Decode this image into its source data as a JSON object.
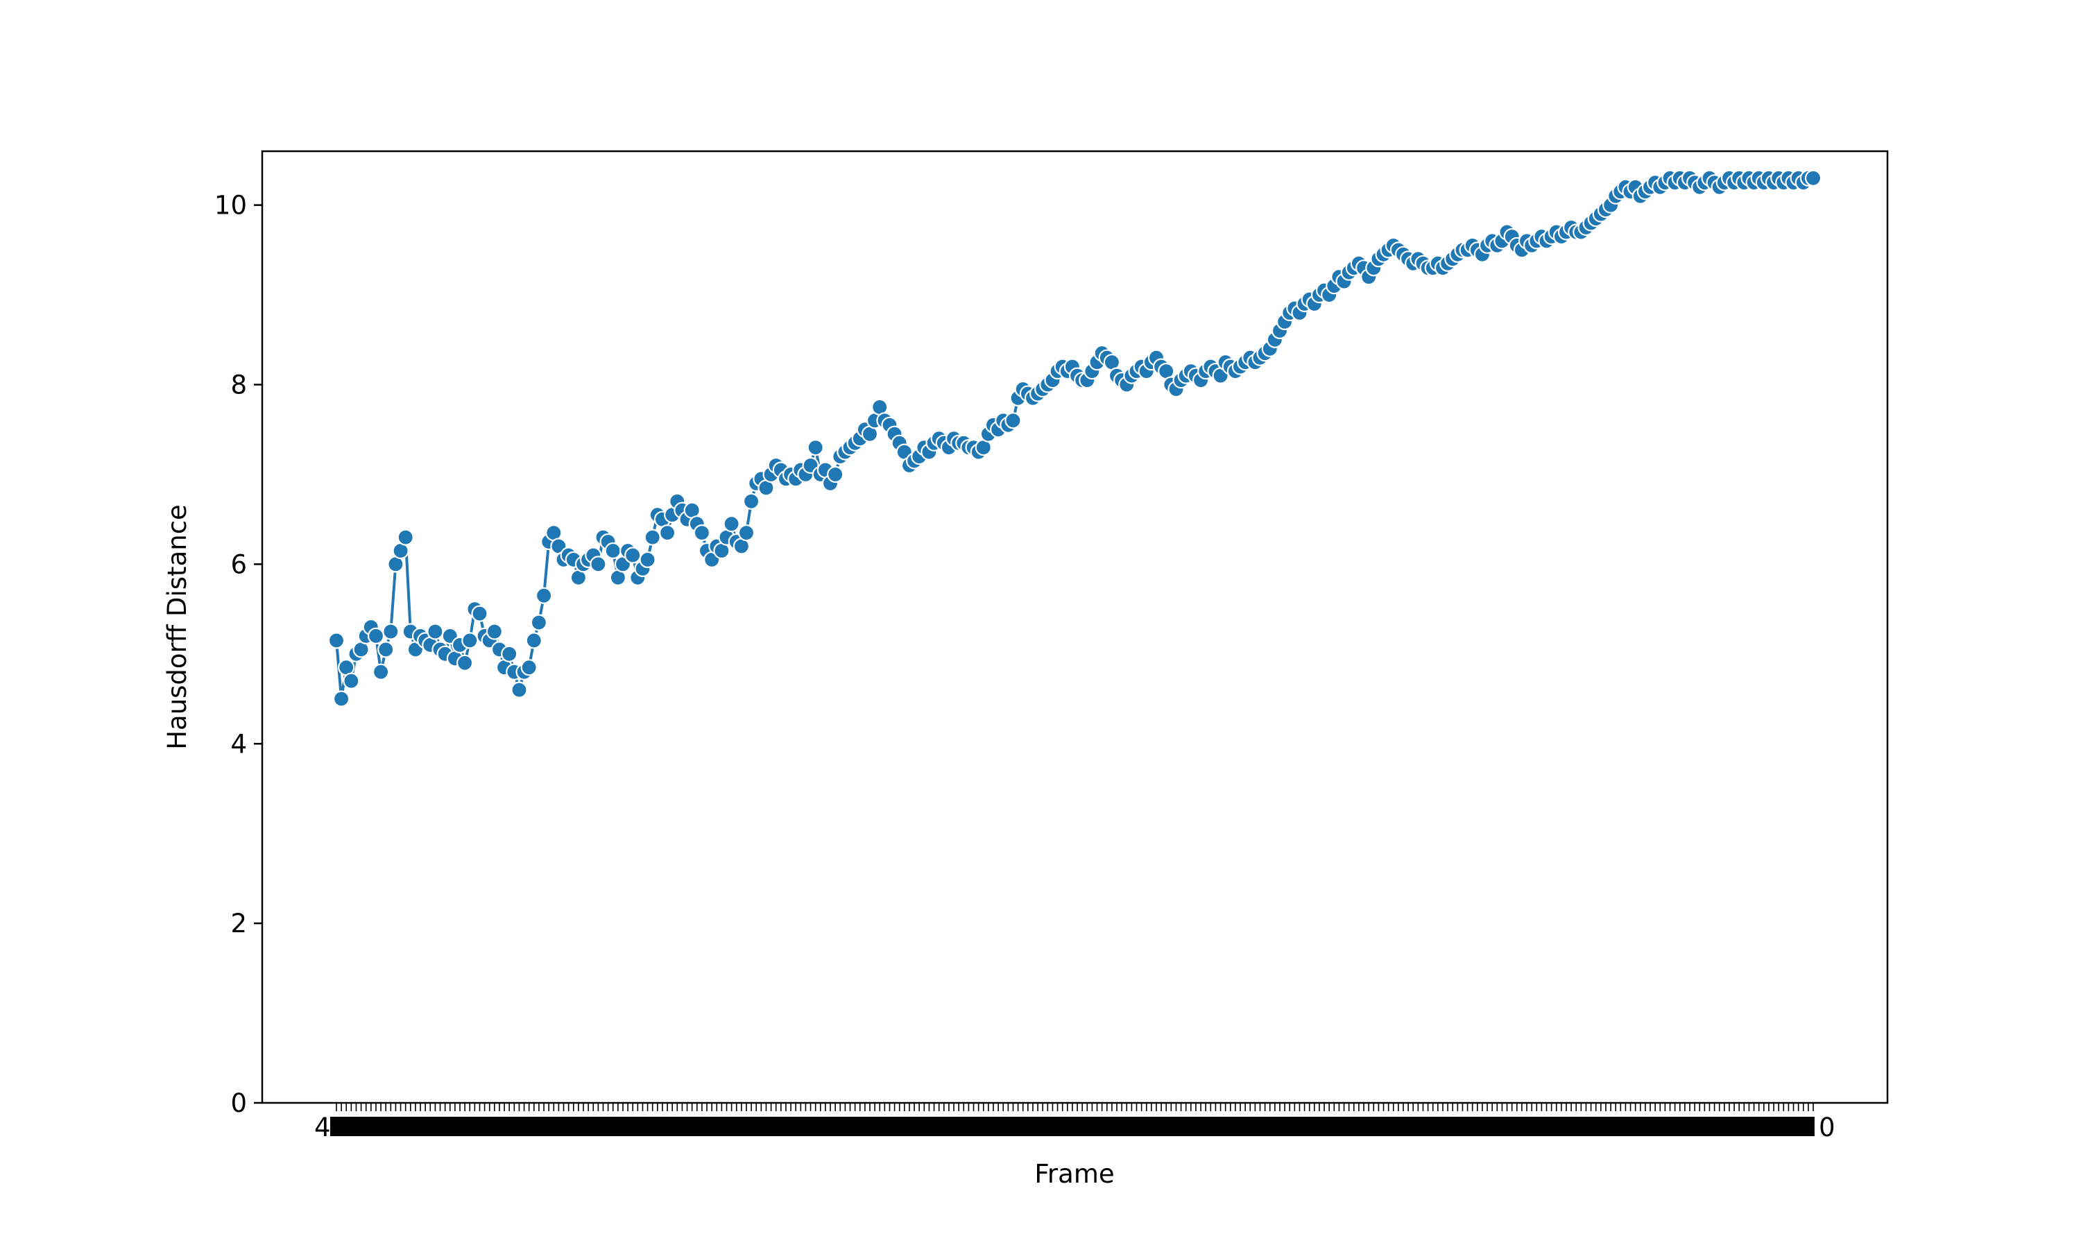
{
  "chart_data": {
    "type": "line",
    "title": "",
    "xlabel": "Frame",
    "ylabel": "Hausdorff Distance",
    "ylim": [
      0,
      10.6
    ],
    "yticks": [
      "0",
      "2",
      "4",
      "6",
      "8",
      "10"
    ],
    "grid": false,
    "legend": "none",
    "marker": "circle",
    "x_tick_labels_overlapping": true,
    "x_tick_label_fragments": [
      "4",
      "0"
    ],
    "series": [
      {
        "color": "#1f77b4",
        "values": [
          5.15,
          4.5,
          4.85,
          4.7,
          5.0,
          5.05,
          5.2,
          5.3,
          5.2,
          4.8,
          5.05,
          5.25,
          6.0,
          6.15,
          6.3,
          5.25,
          5.05,
          5.2,
          5.15,
          5.1,
          5.25,
          5.05,
          5.0,
          5.2,
          4.95,
          5.1,
          4.9,
          5.15,
          5.5,
          5.45,
          5.2,
          5.15,
          5.25,
          5.05,
          4.85,
          5.0,
          4.8,
          4.6,
          4.8,
          4.85,
          5.15,
          5.35,
          5.65,
          6.25,
          6.35,
          6.2,
          6.05,
          6.1,
          6.05,
          5.85,
          6.0,
          6.05,
          6.1,
          6.0,
          6.3,
          6.25,
          6.15,
          5.85,
          6.0,
          6.15,
          6.1,
          5.85,
          5.95,
          6.05,
          6.3,
          6.55,
          6.5,
          6.35,
          6.55,
          6.7,
          6.6,
          6.5,
          6.6,
          6.45,
          6.35,
          6.15,
          6.05,
          6.2,
          6.15,
          6.3,
          6.45,
          6.25,
          6.2,
          6.35,
          6.7,
          6.9,
          6.95,
          6.85,
          7.0,
          7.1,
          7.05,
          6.95,
          7.0,
          6.95,
          7.05,
          7.0,
          7.1,
          7.3,
          7.0,
          7.05,
          6.9,
          7.0,
          7.2,
          7.25,
          7.3,
          7.35,
          7.4,
          7.5,
          7.45,
          7.6,
          7.75,
          7.6,
          7.55,
          7.45,
          7.35,
          7.25,
          7.1,
          7.15,
          7.2,
          7.3,
          7.25,
          7.35,
          7.4,
          7.35,
          7.3,
          7.4,
          7.35,
          7.35,
          7.3,
          7.3,
          7.25,
          7.3,
          7.45,
          7.55,
          7.5,
          7.6,
          7.55,
          7.6,
          7.85,
          7.95,
          7.9,
          7.85,
          7.9,
          7.95,
          8.0,
          8.05,
          8.15,
          8.2,
          8.15,
          8.2,
          8.1,
          8.05,
          8.05,
          8.15,
          8.25,
          8.35,
          8.3,
          8.25,
          8.1,
          8.05,
          8.0,
          8.1,
          8.15,
          8.2,
          8.15,
          8.25,
          8.3,
          8.2,
          8.15,
          8.0,
          7.95,
          8.05,
          8.1,
          8.15,
          8.1,
          8.05,
          8.15,
          8.2,
          8.15,
          8.1,
          8.25,
          8.2,
          8.15,
          8.2,
          8.25,
          8.3,
          8.25,
          8.3,
          8.35,
          8.4,
          8.5,
          8.6,
          8.7,
          8.8,
          8.85,
          8.8,
          8.9,
          8.95,
          8.9,
          9.0,
          9.05,
          9.0,
          9.1,
          9.2,
          9.15,
          9.25,
          9.3,
          9.35,
          9.3,
          9.2,
          9.3,
          9.4,
          9.45,
          9.5,
          9.55,
          9.5,
          9.45,
          9.4,
          9.35,
          9.4,
          9.35,
          9.3,
          9.3,
          9.35,
          9.3,
          9.35,
          9.4,
          9.45,
          9.5,
          9.5,
          9.55,
          9.5,
          9.45,
          9.55,
          9.6,
          9.55,
          9.6,
          9.7,
          9.65,
          9.55,
          9.5,
          9.6,
          9.55,
          9.6,
          9.65,
          9.6,
          9.65,
          9.7,
          9.65,
          9.7,
          9.75,
          9.7,
          9.7,
          9.75,
          9.8,
          9.85,
          9.9,
          9.95,
          10.0,
          10.1,
          10.15,
          10.2,
          10.15,
          10.2,
          10.1,
          10.15,
          10.2,
          10.25,
          10.2,
          10.25,
          10.3,
          10.25,
          10.3,
          10.25,
          10.3,
          10.25,
          10.2,
          10.25,
          10.3,
          10.25,
          10.2,
          10.25,
          10.3,
          10.25,
          10.3,
          10.25,
          10.3,
          10.25,
          10.3,
          10.25,
          10.3,
          10.25,
          10.3,
          10.25,
          10.3,
          10.25,
          10.3,
          10.25,
          10.3,
          10.3
        ]
      }
    ]
  }
}
